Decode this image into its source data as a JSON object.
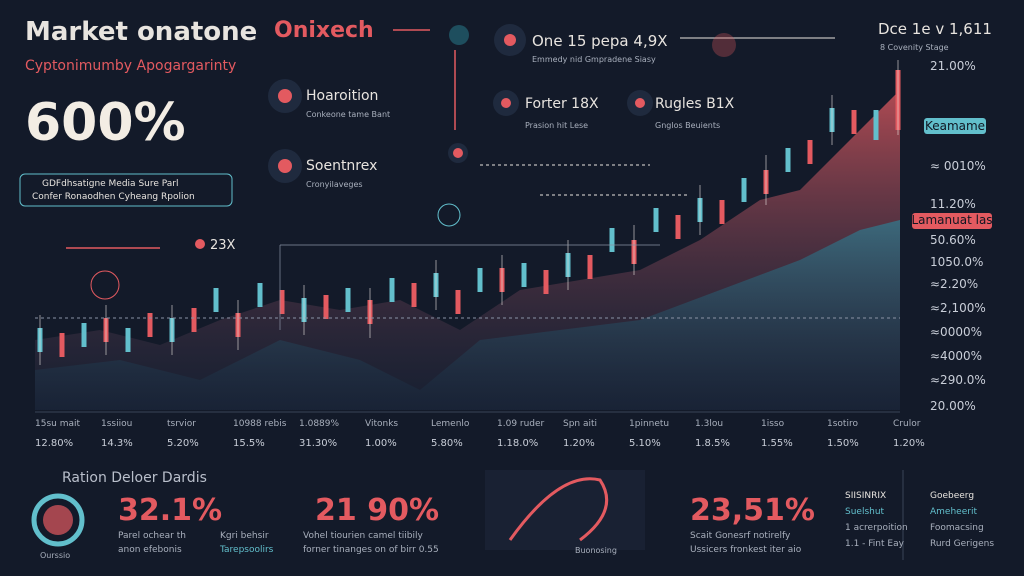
{
  "header": {
    "title": "Market onatone",
    "subtitle": "Cyptonimumby Apogargarinty",
    "big_value": "600%",
    "box_lines": [
      "GDFdhsatigne Media Sure Parl",
      "Confer Ronaodhen Cyheang Rpolion"
    ]
  },
  "logo": "Onixech",
  "top_items": [
    {
      "title": "One 15 pepa 4,9X",
      "sub": "Emmedy nid Gmpradene Siasy"
    },
    {
      "title": "Dce 1e v 1,611",
      "sub": "8 Covenity Stage"
    }
  ],
  "labels": [
    {
      "title": "Hoaroition",
      "sub": "Conkeone tame Bant"
    },
    {
      "title": "Soentnrex",
      "sub": "Cronyilaveges"
    },
    {
      "title": "Forter 18X",
      "sub": "Prasion hit Lese"
    },
    {
      "title": "Rugles B1X",
      "sub": "Gnglos Beuients"
    }
  ],
  "marker": "23X",
  "right_axis": [
    "21.00%",
    "Keamame",
    "≈ 0010%",
    "11.20%",
    "Lamanuat las",
    "50.60%",
    "1050.0%",
    "≈2.20%",
    "≈2,100%",
    "≈0000%",
    "≈4000%",
    "≈290.0%",
    "20.00%"
  ],
  "x_labels": [
    "15su mait",
    "1ssiiou",
    "tsrvior",
    "10988 rebis",
    "1.0889%",
    "Vitonks",
    "Lemenlo",
    "1.09 ruder",
    "Spn aiti",
    "1pinnetu",
    "1.3lou",
    "1isso",
    "1sotiro",
    "Crulor"
  ],
  "x_values": [
    "12.80%",
    "14.3%",
    "5.20%",
    "15.5%",
    "31.30%",
    "1.00%",
    "5.80%",
    "1.18.0%",
    "1.20%",
    "5.10%",
    "1.8.5%",
    "1.55%",
    "1.50%",
    "1.20%"
  ],
  "bottom": {
    "title": "Ration Deloer Dardis",
    "gauge_label": "Ourssio",
    "stats": [
      {
        "value": "32.1%",
        "lines": [
          "Parel ochear th",
          "anon efebonis"
        ],
        "side": [
          "Kgri behsir",
          "Tarepsoolirs"
        ]
      },
      {
        "value": "21 90%",
        "lines": [
          "Vohel tiourien camel tiibily",
          "forner tinanges on of birr 0.55"
        ]
      },
      {
        "value": "23,51%",
        "lines": [
          "Scait Gonesrf notirelfy",
          "Ussicers fronkest iter aio"
        ]
      }
    ],
    "image_label": "Buonosing",
    "legend": [
      "SIISINRIX",
      "Goebeerg",
      "Suelshut",
      "Ameheerit",
      "1 acrerpoition",
      "Foomacsing",
      "1.1 - Fint Eay",
      "Rurd Gerigens"
    ]
  }
}
